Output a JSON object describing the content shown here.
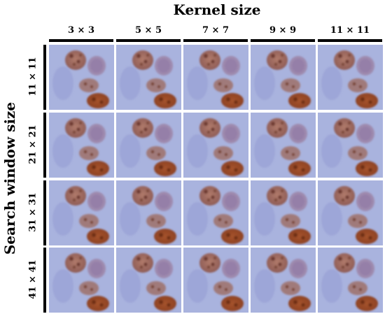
{
  "figure": {
    "column_axis_title": "Kernel size",
    "row_axis_title": "Search window size",
    "columns": [
      "3 × 3",
      "5 × 5",
      "7 × 7",
      "9 × 9",
      "11 × 11"
    ],
    "rows": [
      "11 × 11",
      "21 × 21",
      "31 × 31",
      "41 × 41"
    ]
  },
  "colors": {
    "background": "#a9b3de",
    "pale_nucleus": "#9aa3d6",
    "stained_nucleus_light": "#b07a6a",
    "stained_nucleus_dark": "#8a3f22",
    "stained_nucleus_brown": "#a5532c"
  }
}
